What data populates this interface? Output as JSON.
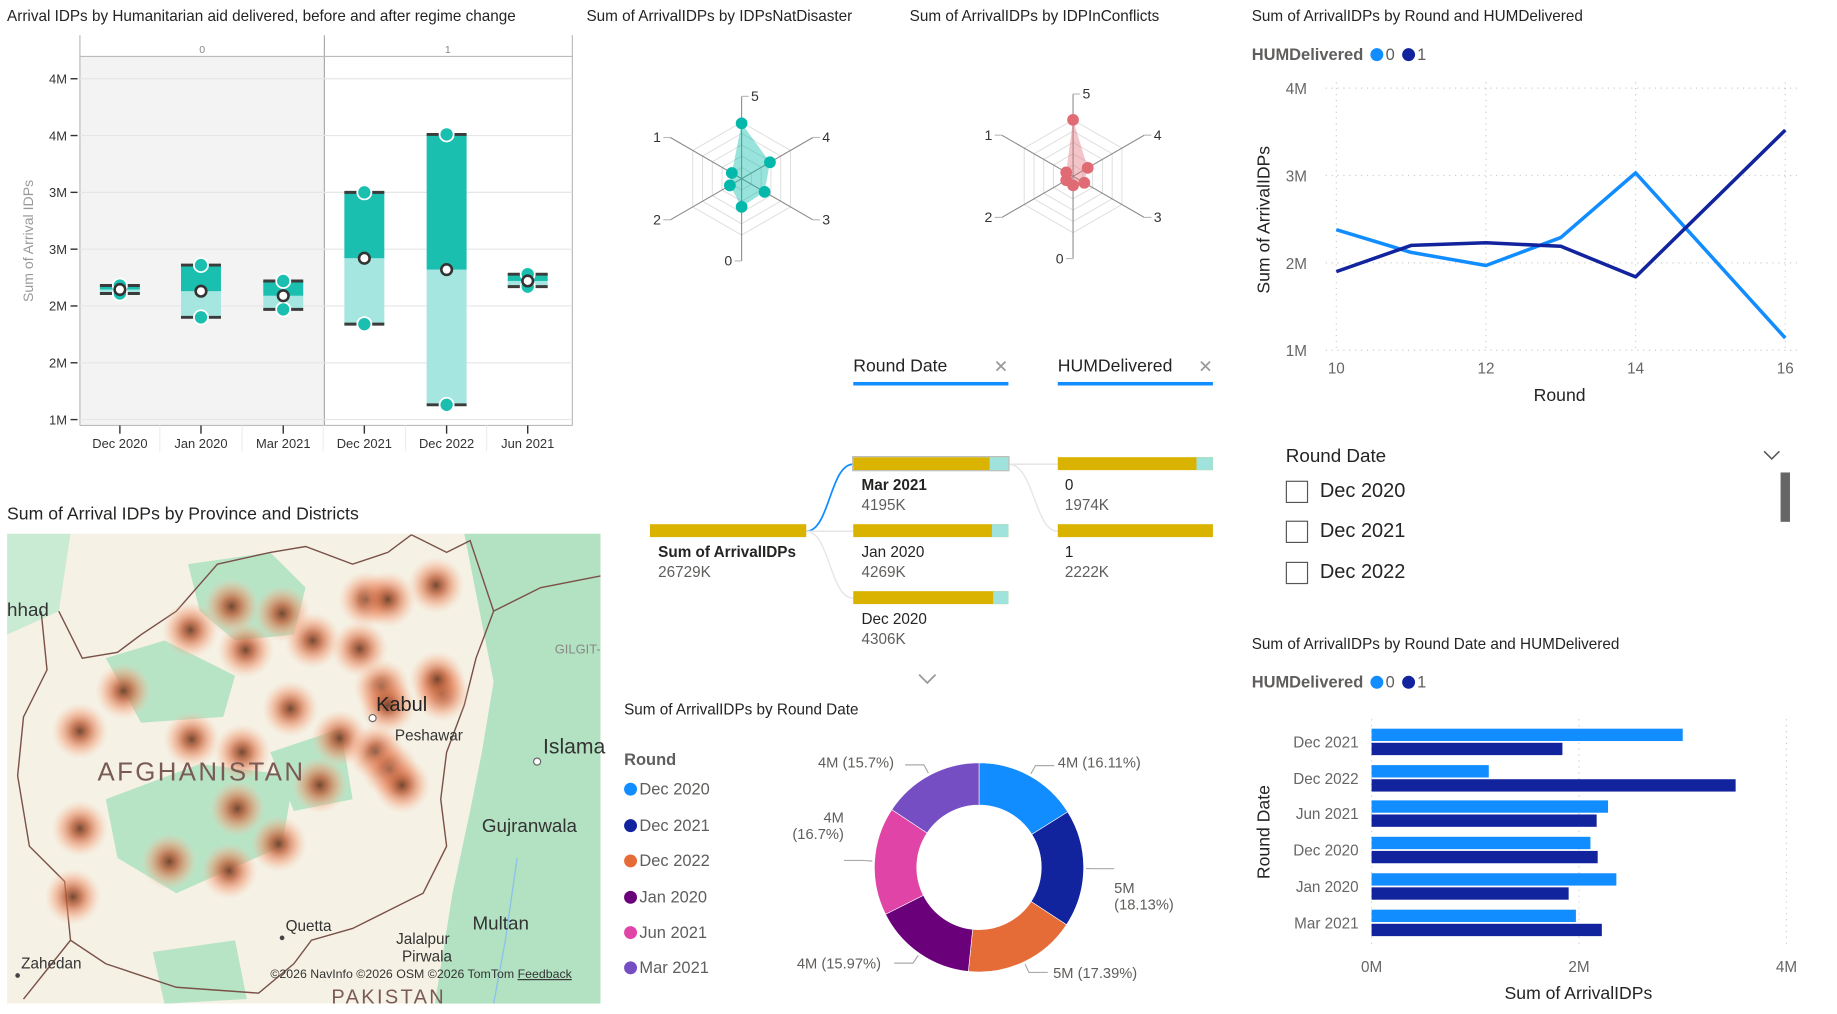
{
  "map": {
    "title": "Sum of Arrival IDPs by Province and Districts",
    "labels": {
      "mashhad": "hhad",
      "kabul": "Kabul",
      "peshawar": "Peshawar",
      "islamabad": "Islama",
      "afghanistan": "AFGHANISTAN",
      "gilgit": "GILGIT-",
      "gujranwala": "Gujranwala",
      "quetta": "Quetta",
      "zahedan": "Zahedan",
      "jalalpur": "Jalalpur",
      "pirwala": "Pirwala",
      "multan": "Multan",
      "pakistan": "PAKISTAN"
    },
    "attribution": "©2026 NavInfo  ©2026 OSM  ©2026 TomTom",
    "feedback": "Feedback",
    "heat_color": "#E8855C"
  },
  "decomposition_tree": {
    "levels": [
      {
        "label": "Round Date",
        "close_icon": "close-icon"
      },
      {
        "label": "HUMDelivered",
        "close_icon": "close-icon"
      }
    ],
    "root": {
      "label": "Sum of ArrivalIDPs",
      "value": "26729K"
    },
    "round_date_nodes": [
      {
        "label": "Mar 2021",
        "value": "4195K",
        "selected": true
      },
      {
        "label": "Jan 2020",
        "value": "4269K"
      },
      {
        "label": "Dec 2020",
        "value": "4306K"
      }
    ],
    "hum_nodes": [
      {
        "label": "0",
        "value": "1974K"
      },
      {
        "label": "1",
        "value": "2222K"
      }
    ],
    "bar_color": "#D9B300",
    "accent": "#118DFF",
    "more_icon": "chevron-down-icon"
  },
  "slicer": {
    "title": "Round Date",
    "items": [
      {
        "label": "Dec 2020",
        "checked": false
      },
      {
        "label": "Dec 2021",
        "checked": false
      },
      {
        "label": "Dec 2022",
        "checked": false
      }
    ]
  },
  "chart_data": [
    {
      "type": "box",
      "title": "Arrival IDPs by Humanitarian aid delivered, before and after regime change",
      "ylabel": "Sum of Arrival IDPs",
      "ylim": [
        1,
        4
      ],
      "y_tick_values": [
        1,
        1.5,
        2,
        2.5,
        3,
        3.5,
        4
      ],
      "y_tick_labels": [
        "1M",
        "2M",
        "2M",
        "3M",
        "3M",
        "4M",
        "4M"
      ],
      "facets": [
        {
          "label": "0",
          "categories": [
            "Dec 2020",
            "Jan 2020",
            "Mar 2021"
          ]
        },
        {
          "label": "1",
          "categories": [
            "Dec 2021",
            "Dec 2022",
            "Jun 2021"
          ]
        }
      ],
      "boxes": [
        {
          "category": "Dec 2020",
          "low": 2.11,
          "median": 2.145,
          "high": 2.18
        },
        {
          "category": "Jan 2020",
          "low": 1.9,
          "median": 2.13,
          "high": 2.36
        },
        {
          "category": "Mar 2021",
          "low": 1.97,
          "median": 2.09,
          "high": 2.22
        },
        {
          "category": "Dec 2021",
          "low": 1.84,
          "median": 2.42,
          "high": 3.0
        },
        {
          "category": "Dec 2022",
          "low": 1.13,
          "median": 2.32,
          "high": 3.51
        },
        {
          "category": "Jun 2021",
          "low": 2.17,
          "median": 2.22,
          "high": 2.28
        }
      ],
      "colors": {
        "upper": "#1ABFB0",
        "lower": "#A6E6E1",
        "shaded_facet": "#F3F3F3"
      }
    },
    {
      "type": "radar",
      "title": "Sum of ArrivalIDPs by IDPsNatDisaster",
      "axes": [
        "5",
        "4",
        "3",
        "0",
        "2",
        "1"
      ],
      "values": [
        0.98,
        0.58,
        0.47,
        0.5,
        0.24,
        0.2
      ],
      "color": "#01B8AA"
    },
    {
      "type": "radar",
      "title": "Sum of ArrivalIDPs by IDPInConflicts",
      "axes": [
        "5",
        "4",
        "3",
        "0",
        "2",
        "1"
      ],
      "values": [
        1.0,
        0.3,
        0.23,
        0.16,
        0.14,
        0.14
      ],
      "color": "#E06B75"
    },
    {
      "type": "line",
      "title": "Sum of ArrivalIDPs by Round and HUMDelivered",
      "legend_title": "HUMDelivered",
      "x": [
        10,
        11,
        12,
        13,
        14,
        16
      ],
      "x_ticks": [
        10,
        12,
        14,
        16
      ],
      "xlabel": "Round",
      "ylabel": "Sum of ArrivalIDPs",
      "ylim": [
        1,
        4
      ],
      "y_tick_values": [
        1,
        2,
        3,
        4
      ],
      "y_tick_labels": [
        "1M",
        "2M",
        "3M",
        "4M"
      ],
      "series": [
        {
          "name": "0",
          "color": "#118DFF",
          "values": [
            2.38,
            2.12,
            1.97,
            2.29,
            3.03,
            1.14
          ]
        },
        {
          "name": "1",
          "color": "#12239E",
          "values": [
            1.9,
            2.2,
            2.23,
            2.19,
            1.84,
            3.52
          ]
        }
      ],
      "grid": true,
      "legend_position": "top-left"
    },
    {
      "type": "pie",
      "donut": true,
      "title": "Sum of ArrivalIDPs by Round Date",
      "legend_title": "Round",
      "slices": [
        {
          "name": "Dec 2020",
          "percent": 16.11,
          "value_label": "4M",
          "pct_label": "(16.11%)",
          "color": "#118DFF"
        },
        {
          "name": "Dec 2021",
          "percent": 18.13,
          "value_label": "5M",
          "pct_label": "(18.13%)",
          "color": "#12239E"
        },
        {
          "name": "Dec 2022",
          "percent": 17.39,
          "value_label": "5M",
          "pct_label": "(17.39%)",
          "color": "#E66C37"
        },
        {
          "name": "Jan 2020",
          "percent": 15.97,
          "value_label": "4M",
          "pct_label": "(15.97%)",
          "color": "#6B007B"
        },
        {
          "name": "Jun 2021",
          "percent": 16.7,
          "value_label": "4M",
          "pct_label": "(16.7%)",
          "color": "#E044A7"
        },
        {
          "name": "Mar 2021",
          "percent": 15.7,
          "value_label": "4M",
          "pct_label": "(15.7%)",
          "color": "#744EC2"
        }
      ],
      "legend_position": "left"
    },
    {
      "type": "bar",
      "orientation": "horizontal",
      "title": "Sum of ArrivalIDPs by Round Date and HUMDelivered",
      "legend_title": "HUMDelivered",
      "categories": [
        "Dec 2021",
        "Dec 2022",
        "Jun 2021",
        "Dec 2020",
        "Jan 2020",
        "Mar 2021"
      ],
      "series": [
        {
          "name": "0",
          "color": "#118DFF",
          "values": [
            3.0,
            1.13,
            2.28,
            2.11,
            2.36,
            1.97
          ]
        },
        {
          "name": "1",
          "color": "#12239E",
          "values": [
            1.84,
            3.51,
            2.17,
            2.18,
            1.9,
            2.22
          ]
        }
      ],
      "xlabel": "Sum of ArrivalIDPs",
      "ylabel": "Round Date",
      "xlim": [
        0,
        4
      ],
      "x_tick_values": [
        0,
        2,
        4
      ],
      "x_tick_labels": [
        "0M",
        "2M",
        "4M"
      ],
      "grid": true,
      "legend_position": "top-left"
    }
  ]
}
